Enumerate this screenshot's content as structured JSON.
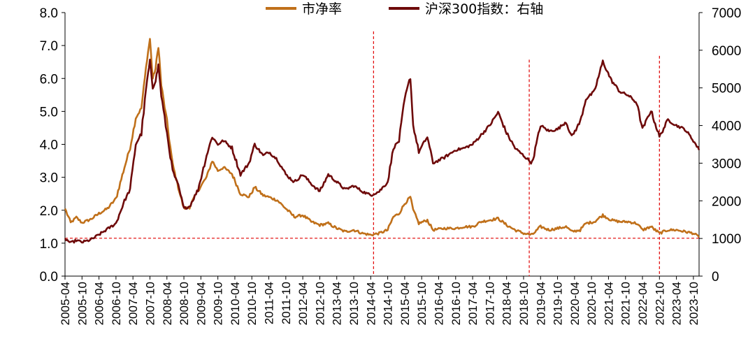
{
  "chart_data": {
    "type": "line",
    "title": "",
    "xlabel": "",
    "ylabel": "",
    "y2label": "",
    "x_range": [
      "2005-04",
      "2023-12"
    ],
    "x_ticks": [
      "2005-04",
      "2005-10",
      "2006-04",
      "2006-10",
      "2007-04",
      "2007-10",
      "2008-04",
      "2008-10",
      "2009-04",
      "2009-10",
      "2010-04",
      "2010-10",
      "2011-04",
      "2011-10",
      "2012-04",
      "2012-10",
      "2013-04",
      "2013-10",
      "2014-04",
      "2014-10",
      "2015-04",
      "2015-10",
      "2016-04",
      "2016-10",
      "2017-04",
      "2017-10",
      "2018-04",
      "2018-10",
      "2019-04",
      "2019-10",
      "2020-04",
      "2020-10",
      "2021-04",
      "2021-10",
      "2022-04",
      "2022-10",
      "2023-04",
      "2023-10"
    ],
    "y_left": {
      "min": 0,
      "max": 8,
      "ticks": [
        "0.0",
        "1.0",
        "2.0",
        "3.0",
        "4.0",
        "5.0",
        "6.0",
        "7.0",
        "8.0"
      ]
    },
    "y_right": {
      "min": 0,
      "max": 7000,
      "ticks": [
        "0",
        "1000",
        "2000",
        "3000",
        "4000",
        "5000",
        "6000",
        "7000"
      ]
    },
    "grid": false,
    "legend": "top-center",
    "series": [
      {
        "name": "市净率",
        "axis": "left",
        "color": "#C0701A",
        "points": [
          [
            "2005-04",
            2.05
          ],
          [
            "2005-06",
            1.62
          ],
          [
            "2005-08",
            1.78
          ],
          [
            "2005-10",
            1.62
          ],
          [
            "2006-01",
            1.72
          ],
          [
            "2006-04",
            1.9
          ],
          [
            "2006-07",
            2.05
          ],
          [
            "2006-10",
            2.35
          ],
          [
            "2007-01",
            3.3
          ],
          [
            "2007-03",
            3.9
          ],
          [
            "2007-05",
            4.8
          ],
          [
            "2007-07",
            5.1
          ],
          [
            "2007-09",
            6.6
          ],
          [
            "2007-10",
            7.2
          ],
          [
            "2007-11",
            6.0
          ],
          [
            "2007-12",
            6.3
          ],
          [
            "2008-01",
            7.0
          ],
          [
            "2008-02",
            5.8
          ],
          [
            "2008-04",
            4.7
          ],
          [
            "2008-06",
            3.4
          ],
          [
            "2008-08",
            2.7
          ],
          [
            "2008-10",
            2.05
          ],
          [
            "2008-12",
            2.1
          ],
          [
            "2009-03",
            2.6
          ],
          [
            "2009-06",
            3.0
          ],
          [
            "2009-08",
            3.5
          ],
          [
            "2009-10",
            3.2
          ],
          [
            "2009-12",
            3.3
          ],
          [
            "2010-03",
            3.1
          ],
          [
            "2010-06",
            2.5
          ],
          [
            "2010-09",
            2.4
          ],
          [
            "2010-11",
            2.7
          ],
          [
            "2011-02",
            2.45
          ],
          [
            "2011-04",
            2.4
          ],
          [
            "2011-07",
            2.3
          ],
          [
            "2011-10",
            2.05
          ],
          [
            "2012-01",
            1.8
          ],
          [
            "2012-04",
            1.85
          ],
          [
            "2012-07",
            1.65
          ],
          [
            "2012-10",
            1.55
          ],
          [
            "2013-01",
            1.6
          ],
          [
            "2013-04",
            1.45
          ],
          [
            "2013-07",
            1.35
          ],
          [
            "2013-10",
            1.4
          ],
          [
            "2014-01",
            1.3
          ],
          [
            "2014-04",
            1.25
          ],
          [
            "2014-07",
            1.3
          ],
          [
            "2014-10",
            1.4
          ],
          [
            "2014-12",
            1.8
          ],
          [
            "2015-02",
            1.9
          ],
          [
            "2015-04",
            2.2
          ],
          [
            "2015-06",
            2.4
          ],
          [
            "2015-07",
            2.0
          ],
          [
            "2015-09",
            1.6
          ],
          [
            "2015-12",
            1.7
          ],
          [
            "2016-02",
            1.4
          ],
          [
            "2016-06",
            1.45
          ],
          [
            "2016-10",
            1.45
          ],
          [
            "2017-01",
            1.5
          ],
          [
            "2017-04",
            1.5
          ],
          [
            "2017-07",
            1.65
          ],
          [
            "2017-10",
            1.7
          ],
          [
            "2018-01",
            1.75
          ],
          [
            "2018-04",
            1.55
          ],
          [
            "2018-07",
            1.4
          ],
          [
            "2018-10",
            1.3
          ],
          [
            "2019-01",
            1.25
          ],
          [
            "2019-04",
            1.5
          ],
          [
            "2019-07",
            1.4
          ],
          [
            "2019-10",
            1.45
          ],
          [
            "2020-01",
            1.5
          ],
          [
            "2020-03",
            1.35
          ],
          [
            "2020-06",
            1.4
          ],
          [
            "2020-08",
            1.6
          ],
          [
            "2020-11",
            1.65
          ],
          [
            "2021-02",
            1.85
          ],
          [
            "2021-05",
            1.7
          ],
          [
            "2021-08",
            1.65
          ],
          [
            "2021-11",
            1.65
          ],
          [
            "2022-02",
            1.6
          ],
          [
            "2022-04",
            1.4
          ],
          [
            "2022-07",
            1.5
          ],
          [
            "2022-10",
            1.3
          ],
          [
            "2023-01",
            1.4
          ],
          [
            "2023-04",
            1.4
          ],
          [
            "2023-07",
            1.35
          ],
          [
            "2023-10",
            1.3
          ],
          [
            "2023-12",
            1.18
          ]
        ]
      },
      {
        "name": "沪深300指数：右轴",
        "axis": "right",
        "color": "#6E0A0A",
        "points": [
          [
            "2005-04",
            1000
          ],
          [
            "2005-06",
            880
          ],
          [
            "2005-08",
            950
          ],
          [
            "2005-10",
            900
          ],
          [
            "2006-01",
            960
          ],
          [
            "2006-04",
            1100
          ],
          [
            "2006-07",
            1250
          ],
          [
            "2006-10",
            1400
          ],
          [
            "2007-01",
            2000
          ],
          [
            "2007-03",
            2300
          ],
          [
            "2007-05",
            3500
          ],
          [
            "2007-07",
            3800
          ],
          [
            "2007-09",
            5200
          ],
          [
            "2007-10",
            5700
          ],
          [
            "2007-11",
            5000
          ],
          [
            "2007-12",
            5200
          ],
          [
            "2008-01",
            5600
          ],
          [
            "2008-02",
            4800
          ],
          [
            "2008-04",
            3800
          ],
          [
            "2008-06",
            2800
          ],
          [
            "2008-08",
            2400
          ],
          [
            "2008-10",
            1800
          ],
          [
            "2008-12",
            1850
          ],
          [
            "2009-03",
            2300
          ],
          [
            "2009-06",
            3200
          ],
          [
            "2009-08",
            3700
          ],
          [
            "2009-10",
            3500
          ],
          [
            "2009-12",
            3600
          ],
          [
            "2010-03",
            3400
          ],
          [
            "2010-06",
            2700
          ],
          [
            "2010-09",
            3000
          ],
          [
            "2010-11",
            3500
          ],
          [
            "2011-02",
            3200
          ],
          [
            "2011-04",
            3300
          ],
          [
            "2011-07",
            3100
          ],
          [
            "2011-10",
            2700
          ],
          [
            "2012-01",
            2500
          ],
          [
            "2012-04",
            2700
          ],
          [
            "2012-07",
            2450
          ],
          [
            "2012-10",
            2250
          ],
          [
            "2013-01",
            2700
          ],
          [
            "2013-04",
            2500
          ],
          [
            "2013-07",
            2300
          ],
          [
            "2013-10",
            2400
          ],
          [
            "2014-01",
            2250
          ],
          [
            "2014-04",
            2150
          ],
          [
            "2014-07",
            2250
          ],
          [
            "2014-10",
            2500
          ],
          [
            "2014-12",
            3400
          ],
          [
            "2015-02",
            3600
          ],
          [
            "2015-04",
            4700
          ],
          [
            "2015-06",
            5300
          ],
          [
            "2015-07",
            4000
          ],
          [
            "2015-09",
            3300
          ],
          [
            "2015-12",
            3700
          ],
          [
            "2016-02",
            3000
          ],
          [
            "2016-06",
            3150
          ],
          [
            "2016-10",
            3350
          ],
          [
            "2017-01",
            3400
          ],
          [
            "2017-04",
            3500
          ],
          [
            "2017-07",
            3750
          ],
          [
            "2017-10",
            4000
          ],
          [
            "2018-01",
            4350
          ],
          [
            "2018-04",
            3800
          ],
          [
            "2018-07",
            3400
          ],
          [
            "2018-10",
            3200
          ],
          [
            "2019-01",
            3000
          ],
          [
            "2019-04",
            4000
          ],
          [
            "2019-07",
            3850
          ],
          [
            "2019-10",
            3900
          ],
          [
            "2020-01",
            4100
          ],
          [
            "2020-03",
            3700
          ],
          [
            "2020-06",
            4100
          ],
          [
            "2020-08",
            4700
          ],
          [
            "2020-11",
            4900
          ],
          [
            "2021-02",
            5700
          ],
          [
            "2021-05",
            5200
          ],
          [
            "2021-08",
            4900
          ],
          [
            "2021-11",
            4800
          ],
          [
            "2022-02",
            4600
          ],
          [
            "2022-04",
            3900
          ],
          [
            "2022-07",
            4400
          ],
          [
            "2022-10",
            3700
          ],
          [
            "2023-01",
            4150
          ],
          [
            "2023-04",
            4000
          ],
          [
            "2023-07",
            3900
          ],
          [
            "2023-10",
            3600
          ],
          [
            "2023-12",
            3350
          ]
        ]
      }
    ],
    "reference_lines": [
      {
        "type": "horizontal",
        "axis": "left",
        "value": 1.15,
        "color": "#E00000",
        "style": "dashed",
        "to": "2023-12"
      },
      {
        "type": "vertical",
        "x": "2014-05",
        "color": "#E00000",
        "style": "dashed",
        "from_right": 6500,
        "to_right": 0
      },
      {
        "type": "vertical",
        "x": "2018-12",
        "color": "#E00000",
        "style": "dashed",
        "from_right": 5750,
        "to_right": 0
      },
      {
        "type": "vertical",
        "x": "2022-10",
        "color": "#E00000",
        "style": "dashed",
        "from_right": 5850,
        "to_right": 0
      }
    ]
  }
}
